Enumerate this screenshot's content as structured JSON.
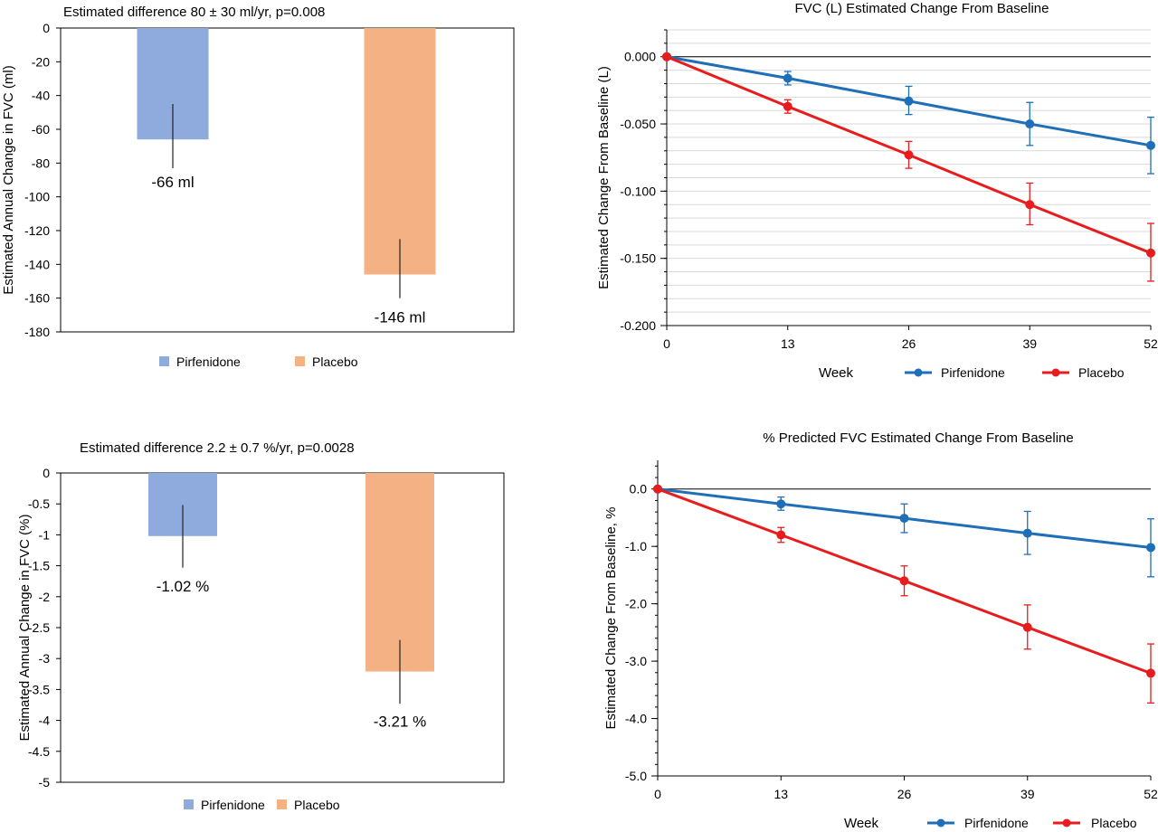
{
  "chart_data": [
    {
      "type": "bar",
      "title": "Estimated difference 80 ± 30 ml/yr, p=0.008",
      "ylabel": "Estimated Annual Change in FVC (ml)",
      "ylim": [
        -180,
        0
      ],
      "yticks": [
        0,
        -20,
        -40,
        -60,
        -80,
        -100,
        -120,
        -140,
        -160,
        -180
      ],
      "ytick_labels": [
        "0",
        "-20",
        "-40",
        "-60",
        "-80",
        "-100",
        "-120",
        "-140",
        "-160",
        "-180"
      ],
      "categories": [
        "Pirfenidone",
        "Placebo"
      ],
      "values": [
        -66,
        -146
      ],
      "error_bars": [
        [
          -83,
          -45
        ],
        [
          -160,
          -125
        ]
      ],
      "data_labels": [
        "-66 ml",
        "-146 ml"
      ],
      "colors": [
        "#8faadc",
        "#f4b183"
      ],
      "legend": [
        "Pirfenidone",
        "Placebo"
      ],
      "legend_position": "bottom"
    },
    {
      "type": "line",
      "title": "FVC (L) Estimated Change From Baseline",
      "xlabel": "Week",
      "ylabel": "Estimated Change From Baseline (L)",
      "x": [
        0,
        13,
        26,
        39,
        52
      ],
      "xlim": [
        0,
        52
      ],
      "xtick_labels": [
        "0",
        "13",
        "26",
        "39",
        "52"
      ],
      "ylim": [
        -0.2,
        0.02
      ],
      "yticks": [
        0,
        -0.05,
        -0.1,
        -0.15,
        -0.2
      ],
      "ytick_labels": [
        "0.000",
        "-0.050",
        "-0.100",
        "-0.150",
        "-0.200"
      ],
      "grid": true,
      "series": [
        {
          "name": "Pirfenidone",
          "color": "#1f6fb8",
          "values": [
            0,
            -0.016,
            -0.033,
            -0.05,
            -0.066
          ],
          "error_low": [
            0,
            -0.021,
            -0.043,
            -0.066,
            -0.087
          ],
          "error_high": [
            0,
            -0.011,
            -0.022,
            -0.034,
            -0.045
          ]
        },
        {
          "name": "Placebo",
          "color": "#e81c1c",
          "values": [
            0,
            -0.037,
            -0.073,
            -0.11,
            -0.146
          ],
          "error_low": [
            0,
            -0.042,
            -0.083,
            -0.125,
            -0.167
          ],
          "error_high": [
            0,
            -0.032,
            -0.063,
            -0.094,
            -0.124
          ]
        }
      ],
      "legend_position": "bottom"
    },
    {
      "type": "bar",
      "title": "Estimated difference 2.2 ± 0.7 %/yr, p=0.0028",
      "ylabel": "Estimated Annual Change in FVC (%)",
      "ylim": [
        -5,
        0
      ],
      "yticks": [
        0,
        -0.5,
        -1,
        -1.5,
        -2,
        -2.5,
        -3,
        -3.5,
        -4,
        -4.5,
        -5
      ],
      "ytick_labels": [
        "0",
        "-0.5",
        "-1",
        "-1.5",
        "-2",
        "-2.5",
        "-3",
        "-3.5",
        "-4",
        "-4.5",
        "-5"
      ],
      "categories": [
        "Pirfenidone",
        "Placebo"
      ],
      "values": [
        -1.02,
        -3.21
      ],
      "error_bars": [
        [
          -1.53,
          -0.52
        ],
        [
          -3.73,
          -2.7
        ]
      ],
      "data_labels": [
        "-1.02 %",
        "-3.21 %"
      ],
      "colors": [
        "#8faadc",
        "#f4b183"
      ],
      "legend": [
        "Pirfenidone",
        "Placebo"
      ],
      "legend_position": "bottom"
    },
    {
      "type": "line",
      "title": "% Predicted FVC Estimated Change From Baseline",
      "xlabel": "Week",
      "ylabel": "Estimated Change From Baseline, %",
      "x": [
        0,
        13,
        26,
        39,
        52
      ],
      "xlim": [
        0,
        52
      ],
      "xtick_labels": [
        "0",
        "13",
        "26",
        "39",
        "52"
      ],
      "ylim": [
        -5,
        0.5
      ],
      "yticks": [
        0,
        -1,
        -2,
        -3,
        -4,
        -5
      ],
      "ytick_labels": [
        "0.0",
        "-1.0",
        "-2.0",
        "-3.0",
        "-4.0",
        "-5.0"
      ],
      "grid": false,
      "series": [
        {
          "name": "Pirfenidone",
          "color": "#1f6fb8",
          "values": [
            0,
            -0.26,
            -0.51,
            -0.77,
            -1.02
          ],
          "error_low": [
            0,
            -0.37,
            -0.76,
            -1.14,
            -1.53
          ],
          "error_high": [
            0,
            -0.14,
            -0.26,
            -0.39,
            -0.52
          ]
        },
        {
          "name": "Placebo",
          "color": "#e81c1c",
          "values": [
            0,
            -0.8,
            -1.6,
            -2.41,
            -3.21
          ],
          "error_low": [
            0,
            -0.93,
            -1.86,
            -2.79,
            -3.73
          ],
          "error_high": [
            0,
            -0.67,
            -1.34,
            -2.02,
            -2.7
          ]
        }
      ],
      "legend_position": "bottom"
    }
  ]
}
